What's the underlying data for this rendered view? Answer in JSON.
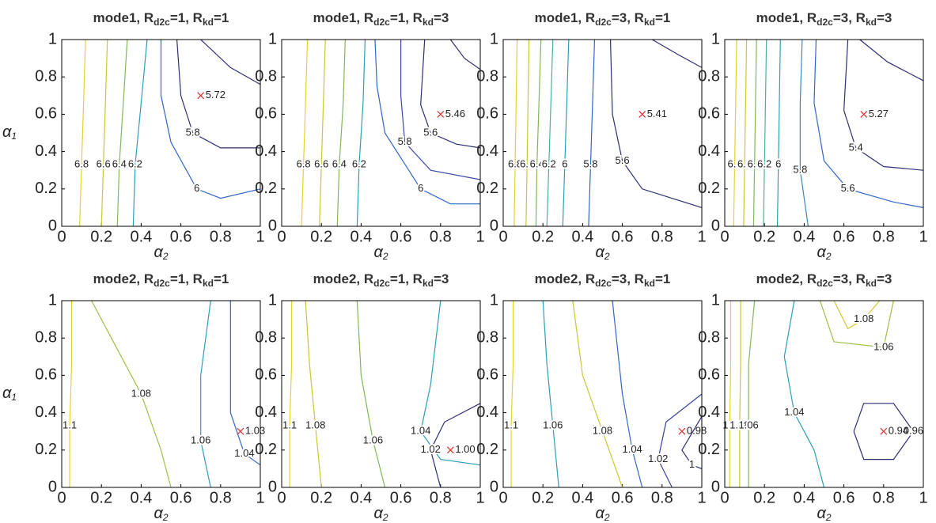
{
  "chart_data": [
    {
      "type": "contour",
      "title_parts": [
        "mode1, R",
        "d2c",
        "=1, R",
        "kd",
        "=1"
      ],
      "xlabel_parts": [
        "α",
        "2"
      ],
      "ylabel_parts": [
        "α",
        "1"
      ],
      "xlim": [
        0,
        1
      ],
      "ylim": [
        0,
        1
      ],
      "xticks": [
        0,
        0.2,
        0.4,
        0.6,
        0.8,
        1
      ],
      "yticks": [
        0,
        0.2,
        0.4,
        0.6,
        0.8,
        1
      ],
      "contours": [
        {
          "level": 6.8,
          "color": "#e8d12c",
          "x": [
            0.12,
            0.11,
            0.1,
            0.09
          ],
          "y": [
            1,
            0.66,
            0.33,
            0
          ]
        },
        {
          "level": 6.6,
          "color": "#c9c832",
          "x": [
            0.23,
            0.22,
            0.21,
            0.2
          ],
          "y": [
            1,
            0.66,
            0.33,
            0
          ]
        },
        {
          "level": 6.4,
          "color": "#7fb858",
          "x": [
            0.33,
            0.31,
            0.29,
            0.28
          ],
          "y": [
            1,
            0.66,
            0.33,
            0
          ]
        },
        {
          "level": 6.2,
          "color": "#2a9fb8",
          "x": [
            0.43,
            0.4,
            0.37,
            0.36
          ],
          "y": [
            1,
            0.66,
            0.33,
            0
          ]
        },
        {
          "level": 6,
          "color": "#3266c8",
          "x": [
            0.5,
            0.5,
            0.55,
            0.68,
            0.8,
            1
          ],
          "y": [
            1,
            0.7,
            0.45,
            0.2,
            0.15,
            0.2
          ]
        },
        {
          "level": 5.8,
          "color": "#2e2e74",
          "x": [
            0.58,
            0.6,
            0.66,
            0.8,
            1,
            null,
            0.7,
            0.85,
            1
          ],
          "y": [
            1,
            0.7,
            0.5,
            0.42,
            0.42,
            null,
            1,
            0.85,
            0.76
          ]
        }
      ],
      "marker": {
        "x": 0.7,
        "y": 0.7,
        "value": 5.72
      }
    },
    {
      "type": "contour",
      "title_parts": [
        "mode1, R",
        "d2c",
        "=1, R",
        "kd",
        "=3"
      ],
      "xlabel_parts": [
        "α",
        "2"
      ],
      "xlim": [
        0,
        1
      ],
      "ylim": [
        0,
        1
      ],
      "xticks": [
        0,
        0.2,
        0.4,
        0.6,
        0.8,
        1
      ],
      "yticks": [
        0,
        0.2,
        0.4,
        0.6,
        0.8,
        1
      ],
      "contours": [
        {
          "level": 6.8,
          "color": "#e8d12c",
          "x": [
            0.13,
            0.12,
            0.11,
            0.1
          ],
          "y": [
            1,
            0.66,
            0.33,
            0
          ]
        },
        {
          "level": 6.6,
          "color": "#c9c832",
          "x": [
            0.22,
            0.21,
            0.2,
            0.19
          ],
          "y": [
            1,
            0.66,
            0.33,
            0
          ]
        },
        {
          "level": 6.4,
          "color": "#7fb858",
          "x": [
            0.32,
            0.31,
            0.29,
            0.28
          ],
          "y": [
            1,
            0.66,
            0.33,
            0
          ]
        },
        {
          "level": 6.2,
          "color": "#2a9fb8",
          "x": [
            0.42,
            0.41,
            0.39,
            0.38
          ],
          "y": [
            1,
            0.66,
            0.33,
            0
          ]
        },
        {
          "level": 6,
          "color": "#3266c8",
          "x": [
            0.47,
            0.48,
            0.52,
            0.7,
            0.85,
            1
          ],
          "y": [
            1,
            0.75,
            0.5,
            0.2,
            0.12,
            0.12
          ]
        },
        {
          "level": 5.8,
          "color": "#3a4aa8",
          "x": [
            0.6,
            0.6,
            0.62,
            0.75,
            1
          ],
          "y": [
            1,
            0.7,
            0.45,
            0.3,
            0.25
          ]
        },
        {
          "level": 5.6,
          "color": "#2e2e74",
          "x": [
            0.72,
            0.7,
            0.75,
            0.88,
            1,
            null,
            0.85,
            0.92,
            1
          ],
          "y": [
            1,
            0.65,
            0.5,
            0.44,
            0.42,
            null,
            1,
            0.9,
            0.84
          ]
        }
      ],
      "marker": {
        "x": 0.8,
        "y": 0.6,
        "value": 5.46
      }
    },
    {
      "type": "contour",
      "title_parts": [
        "mode1, R",
        "d2c",
        "=3, R",
        "kd",
        "=1"
      ],
      "xlabel_parts": [
        "α",
        "2"
      ],
      "xlim": [
        0,
        1
      ],
      "ylim": [
        0,
        1
      ],
      "xticks": [
        0,
        0.2,
        0.4,
        0.6,
        0.8,
        1
      ],
      "yticks": [
        0,
        0.2,
        0.4,
        0.6,
        0.8,
        1
      ],
      "contours": [
        {
          "level": 6.8,
          "color": "#e8d12c",
          "x": [
            0.07,
            0.065,
            0.06,
            0.055
          ],
          "y": [
            1,
            0.66,
            0.33,
            0
          ]
        },
        {
          "level": 6.6,
          "color": "#c9c832",
          "x": [
            0.13,
            0.125,
            0.12,
            0.115
          ],
          "y": [
            1,
            0.66,
            0.33,
            0
          ]
        },
        {
          "level": 6.4,
          "color": "#7fb858",
          "x": [
            0.19,
            0.18,
            0.17,
            0.165
          ],
          "y": [
            1,
            0.66,
            0.33,
            0
          ]
        },
        {
          "level": 6.2,
          "color": "#4ab09a",
          "x": [
            0.25,
            0.24,
            0.23,
            0.22
          ],
          "y": [
            1,
            0.66,
            0.33,
            0
          ]
        },
        {
          "level": 6,
          "color": "#2a9fb8",
          "x": [
            0.33,
            0.32,
            0.31,
            0.3
          ],
          "y": [
            1,
            0.66,
            0.33,
            0
          ]
        },
        {
          "level": 5.8,
          "color": "#3266c8",
          "x": [
            0.46,
            0.45,
            0.44,
            0.43
          ],
          "y": [
            1,
            0.66,
            0.33,
            0
          ]
        },
        {
          "level": 5.6,
          "color": "#2e2e74",
          "x": [
            0.54,
            0.55,
            0.6,
            0.7,
            1,
            null,
            0.75,
            0.88,
            1
          ],
          "y": [
            1,
            0.6,
            0.35,
            0.2,
            0.1,
            null,
            1,
            0.92,
            0.85
          ]
        }
      ],
      "marker": {
        "x": 0.7,
        "y": 0.6,
        "value": 5.41
      }
    },
    {
      "type": "contour",
      "title_parts": [
        "mode1, R",
        "d2c",
        "=3, R",
        "kd",
        "=3"
      ],
      "xlabel_parts": [
        "α",
        "2"
      ],
      "xlim": [
        0,
        1
      ],
      "ylim": [
        0,
        1
      ],
      "xticks": [
        0,
        0.2,
        0.4,
        0.6,
        0.8,
        1
      ],
      "yticks": [
        0,
        0.2,
        0.4,
        0.6,
        0.8,
        1
      ],
      "contours": [
        {
          "level": 6.8,
          "color": "#e8d12c",
          "x": [
            0.06,
            0.055,
            0.05,
            0.045
          ],
          "y": [
            1,
            0.66,
            0.33,
            0
          ]
        },
        {
          "level": 6.6,
          "color": "#c9c832",
          "x": [
            0.11,
            0.105,
            0.1,
            0.095
          ],
          "y": [
            1,
            0.66,
            0.33,
            0
          ]
        },
        {
          "level": 6.4,
          "color": "#7fb858",
          "x": [
            0.16,
            0.155,
            0.15,
            0.145
          ],
          "y": [
            1,
            0.66,
            0.33,
            0
          ]
        },
        {
          "level": 6.2,
          "color": "#4ab09a",
          "x": [
            0.21,
            0.205,
            0.2,
            0.195
          ],
          "y": [
            1,
            0.66,
            0.33,
            0
          ]
        },
        {
          "level": 6,
          "color": "#2a9fb8",
          "x": [
            0.28,
            0.275,
            0.27,
            0.265
          ],
          "y": [
            1,
            0.66,
            0.33,
            0
          ]
        },
        {
          "level": 5.8,
          "color": "#3a86c4",
          "x": [
            0.39,
            0.38,
            0.38,
            0.42
          ],
          "y": [
            1,
            0.66,
            0.3,
            0
          ]
        },
        {
          "level": 5.6,
          "color": "#3266c8",
          "x": [
            0.46,
            0.45,
            0.5,
            0.62,
            0.85,
            1
          ],
          "y": [
            1,
            0.66,
            0.35,
            0.2,
            0.13,
            0.1
          ]
        },
        {
          "level": 5.4,
          "color": "#2e2e74",
          "x": [
            0.62,
            0.6,
            0.66,
            0.8,
            1,
            null,
            0.68,
            0.82,
            1
          ],
          "y": [
            1,
            0.62,
            0.42,
            0.32,
            0.3,
            null,
            1,
            0.88,
            0.78
          ]
        }
      ],
      "marker": {
        "x": 0.7,
        "y": 0.6,
        "value": 5.27
      }
    },
    {
      "type": "contour",
      "title_parts": [
        "mode2, R",
        "d2c",
        "=1, R",
        "kd",
        "=1"
      ],
      "xlabel_parts": [
        "α",
        "2"
      ],
      "ylabel_parts": [
        "α",
        "1"
      ],
      "xlim": [
        0,
        1
      ],
      "ylim": [
        0,
        1
      ],
      "xticks": [
        0,
        0.2,
        0.4,
        0.6,
        0.8,
        1
      ],
      "yticks": [
        0,
        0.2,
        0.4,
        0.6,
        0.8,
        1
      ],
      "contours": [
        {
          "level": 1.1,
          "color": "#e8d12c",
          "x": [
            0.05,
            0.05,
            0.04,
            0.04
          ],
          "y": [
            1,
            0.66,
            0.33,
            0
          ]
        },
        {
          "level": 1.08,
          "color": "#9cc048",
          "x": [
            0.15,
            0.25,
            0.4,
            0.5,
            0.55
          ],
          "y": [
            1,
            0.8,
            0.5,
            0.2,
            0
          ]
        },
        {
          "level": 1.06,
          "color": "#2a9fb8",
          "x": [
            0.75,
            0.7,
            0.7,
            0.75
          ],
          "y": [
            1,
            0.6,
            0.25,
            0
          ]
        },
        {
          "level": 1.04,
          "color": "#3266c8",
          "x": [
            0.85,
            0.85,
            0.92,
            1
          ],
          "y": [
            1,
            0.4,
            0.18,
            0.12
          ]
        }
      ],
      "marker": {
        "x": 0.9,
        "y": 0.3,
        "value": 1.03
      }
    },
    {
      "type": "contour",
      "title_parts": [
        "mode2, R",
        "d2c",
        "=1, R",
        "kd",
        "=3"
      ],
      "xlabel_parts": [
        "α",
        "2"
      ],
      "xlim": [
        0,
        1
      ],
      "ylim": [
        0,
        1
      ],
      "xticks": [
        0,
        0.2,
        0.4,
        0.6,
        0.8,
        1
      ],
      "yticks": [
        0,
        0.2,
        0.4,
        0.6,
        0.8,
        1
      ],
      "contours": [
        {
          "level": 1.1,
          "color": "#e8d12c",
          "x": [
            0.05,
            0.05,
            0.04,
            0.04
          ],
          "y": [
            1,
            0.66,
            0.33,
            0
          ]
        },
        {
          "level": 1.08,
          "color": "#c9c832",
          "x": [
            0.12,
            0.14,
            0.17,
            0.2
          ],
          "y": [
            1,
            0.66,
            0.33,
            0
          ]
        },
        {
          "level": 1.06,
          "color": "#7fb858",
          "x": [
            0.38,
            0.4,
            0.46,
            0.52
          ],
          "y": [
            1,
            0.6,
            0.25,
            0
          ]
        },
        {
          "level": 1.04,
          "color": "#2a9fb8",
          "x": [
            0.8,
            0.75,
            0.7,
            0.8,
            1
          ],
          "y": [
            1,
            0.55,
            0.3,
            0.15,
            0.12
          ]
        },
        {
          "level": 1.02,
          "color": "#2e2e74",
          "x": [
            1,
            0.82,
            0.75,
            0.8
          ],
          "y": [
            0.45,
            0.35,
            0.2,
            0
          ]
        }
      ],
      "marker": {
        "x": 0.85,
        "y": 0.2,
        "value": 1,
        "value_label": "1.00"
      }
    },
    {
      "type": "contour",
      "title_parts": [
        "mode2, R",
        "d2c",
        "=3, R",
        "kd",
        "=1"
      ],
      "xlabel_parts": [
        "α",
        "2"
      ],
      "xlim": [
        0,
        1
      ],
      "ylim": [
        0,
        1
      ],
      "xticks": [
        0,
        0.2,
        0.4,
        0.6,
        0.8,
        1
      ],
      "yticks": [
        0,
        0.2,
        0.4,
        0.6,
        0.8,
        1
      ],
      "contours": [
        {
          "level": 1.1,
          "color": "#e8d12c",
          "x": [
            0.05,
            0.05,
            0.04,
            0.04
          ],
          "y": [
            1,
            0.66,
            0.33,
            0
          ]
        },
        {
          "level": 1.06,
          "color": "#2a9fb8",
          "x": [
            0.2,
            0.22,
            0.25,
            0.28
          ],
          "y": [
            1,
            0.66,
            0.33,
            0
          ]
        },
        {
          "level": 1.08,
          "color": "#c9c832",
          "x": [
            0.35,
            0.4,
            0.5,
            0.6
          ],
          "y": [
            1,
            0.6,
            0.3,
            0
          ]
        },
        {
          "level": 1.04,
          "color": "#3266c8",
          "x": [
            0.55,
            0.6,
            0.65,
            0.7
          ],
          "y": [
            1,
            0.5,
            0.2,
            0
          ]
        },
        {
          "level": 1.02,
          "color": "#34409a",
          "x": [
            1,
            0.82,
            0.78,
            0.85
          ],
          "y": [
            0.5,
            0.35,
            0.15,
            0
          ]
        },
        {
          "level": 1,
          "color": "#2e2e74",
          "x": [
            1,
            0.9,
            0.95,
            1
          ],
          "y": [
            0.38,
            0.2,
            0.12,
            0.1
          ]
        }
      ],
      "marker": {
        "x": 0.9,
        "y": 0.3,
        "value": 0.98
      }
    },
    {
      "type": "contour",
      "title_parts": [
        "mode2, R",
        "d2c",
        "=3, R",
        "kd",
        "=3"
      ],
      "xlabel_parts": [
        "α",
        "2"
      ],
      "xlim": [
        0,
        1
      ],
      "ylim": [
        0,
        1
      ],
      "xticks": [
        0,
        0.2,
        0.4,
        0.6,
        0.8,
        1
      ],
      "yticks": [
        0,
        0.2,
        0.4,
        0.6,
        0.8,
        1
      ],
      "contours": [
        {
          "level": 1.1,
          "color": "#e8d12c",
          "x": [
            0.03,
            0.03,
            0.025,
            0.025
          ],
          "y": [
            1,
            0.66,
            0.33,
            0
          ]
        },
        {
          "level": 1.08,
          "color": "#c9c832",
          "x": [
            0.08,
            0.08,
            0.075,
            0.075
          ],
          "y": [
            1,
            0.66,
            0.33,
            0
          ]
        },
        {
          "level": 1.06,
          "color": "#7fb858",
          "x": [
            0.15,
            0.12,
            0.12,
            0.12
          ],
          "y": [
            1,
            0.66,
            0.33,
            0
          ]
        },
        {
          "level": 1.04,
          "color": "#2a9fb8",
          "x": [
            0.35,
            0.3,
            0.35,
            0.45,
            0.5
          ],
          "y": [
            1,
            0.7,
            0.4,
            0.2,
            0
          ]
        },
        {
          "level": 1.08,
          "color": "#d8c830",
          "x": [
            0.55,
            0.62,
            0.7,
            0.78
          ],
          "y": [
            1,
            0.85,
            0.9,
            1
          ]
        },
        {
          "level": 1.06,
          "color": "#9cc048",
          "x": [
            0.48,
            0.55,
            0.8,
            0.85
          ],
          "y": [
            1,
            0.78,
            0.75,
            1
          ]
        },
        {
          "level": 0.96,
          "color": "#2e2e74",
          "x": [
            0.65,
            0.7,
            0.85,
            0.95,
            0.85,
            0.7,
            0.65
          ],
          "y": [
            0.3,
            0.45,
            0.45,
            0.3,
            0.15,
            0.15,
            0.3
          ]
        }
      ],
      "marker": {
        "x": 0.8,
        "y": 0.3,
        "value": 0.94
      }
    }
  ]
}
